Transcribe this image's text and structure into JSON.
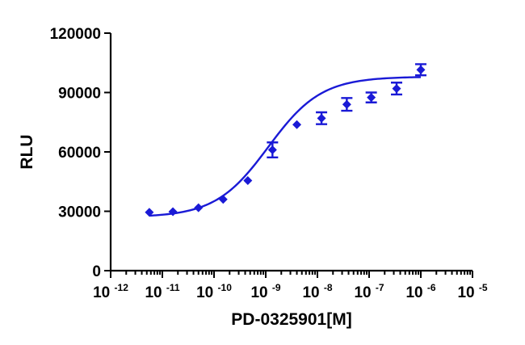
{
  "chart_data": {
    "type": "scatter",
    "xlabel": "PD-0325901[M]",
    "ylabel": "RLU",
    "x_scale": "log",
    "x_ticks": [
      {
        "base": "10",
        "exp": "-12",
        "value": 1e-12
      },
      {
        "base": "10",
        "exp": "-11",
        "value": 1e-11
      },
      {
        "base": "10",
        "exp": "-10",
        "value": 1e-10
      },
      {
        "base": "10",
        "exp": "-9",
        "value": 1e-09
      },
      {
        "base": "10",
        "exp": "-8",
        "value": 1e-08
      },
      {
        "base": "10",
        "exp": "-7",
        "value": 1e-07
      },
      {
        "base": "10",
        "exp": "-6",
        "value": 1e-06
      },
      {
        "base": "10",
        "exp": "-5",
        "value": 1e-05
      }
    ],
    "y_ticks": [
      "0",
      "30000",
      "60000",
      "90000",
      "120000"
    ],
    "xlim": [
      1e-12,
      1e-05
    ],
    "ylim": [
      0,
      120000
    ],
    "grid": false,
    "color": "#1a1ad6",
    "points": [
      {
        "x": 5.6e-12,
        "y": 29500,
        "err": 0
      },
      {
        "x": 1.6e-11,
        "y": 29800,
        "err": 0
      },
      {
        "x": 5e-11,
        "y": 31800,
        "err": 0
      },
      {
        "x": 1.5e-10,
        "y": 36000,
        "err": 0
      },
      {
        "x": 4.5e-10,
        "y": 45500,
        "err": 0
      },
      {
        "x": 1.35e-09,
        "y": 61000,
        "err": 3800
      },
      {
        "x": 4e-09,
        "y": 73800,
        "err": 0
      },
      {
        "x": 1.2e-08,
        "y": 77000,
        "err": 3000
      },
      {
        "x": 3.7e-08,
        "y": 84000,
        "err": 3200
      },
      {
        "x": 1.1e-07,
        "y": 87500,
        "err": 2500
      },
      {
        "x": 3.4e-07,
        "y": 92000,
        "err": 3000
      },
      {
        "x": 1e-06,
        "y": 101500,
        "err": 2800
      }
    ],
    "fit": {
      "model": "4PL",
      "bottom": 27000,
      "top": 98000,
      "log_ec50": -8.95,
      "hill": 0.85,
      "x_range": [
        5.6e-12,
        1e-06
      ]
    }
  }
}
